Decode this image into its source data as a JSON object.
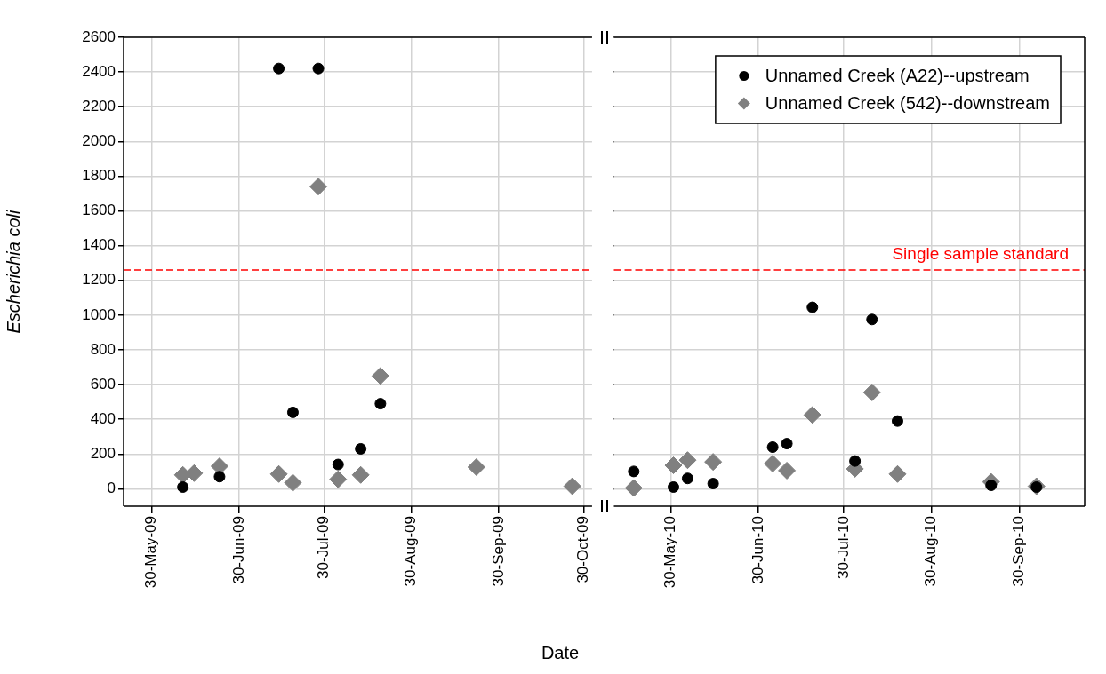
{
  "chart_data": [
    {
      "type": "scatter",
      "ylabel": "Escherichia coli",
      "xlabel": "Date",
      "xlim": [
        "2009-05-20",
        "2009-11-02"
      ],
      "xticks": [
        {
          "value": "2009-05-30",
          "label": "30-May-09"
        },
        {
          "value": "2009-06-30",
          "label": "30-Jun-09"
        },
        {
          "value": "2009-07-30",
          "label": "30-Jul-09"
        },
        {
          "value": "2009-08-30",
          "label": "30-Aug-09"
        },
        {
          "value": "2009-09-30",
          "label": "30-Sep-09"
        },
        {
          "value": "2009-10-30",
          "label": "30-Oct-09"
        }
      ],
      "ylim": [
        -100,
        2600
      ],
      "yticks": [
        0,
        200,
        400,
        600,
        800,
        1000,
        1200,
        1400,
        1600,
        1800,
        2000,
        2200,
        2400,
        2600
      ],
      "grid": true,
      "ref_lines": [
        {
          "axis": "y",
          "value": 1260,
          "color": "#ff0000",
          "line_style": "dashed"
        }
      ],
      "series": [
        {
          "color": "#000000",
          "marker": "circle",
          "x": [
            "2009-06-10",
            "2009-06-23",
            "2009-07-14",
            "2009-07-19",
            "2009-07-28",
            "2009-08-04",
            "2009-08-12",
            "2009-08-19"
          ],
          "values": [
            10,
            70,
            2420,
            440,
            2420,
            140,
            230,
            490
          ]
        },
        {
          "color": "#808080",
          "marker": "diamond",
          "x": [
            "2009-06-10",
            "2009-06-14",
            "2009-06-23",
            "2009-07-14",
            "2009-07-19",
            "2009-07-28",
            "2009-08-04",
            "2009-08-12",
            "2009-08-19",
            "2009-09-22",
            "2009-10-26"
          ],
          "values": [
            80,
            90,
            130,
            85,
            35,
            1740,
            55,
            80,
            650,
            125,
            15
          ]
        }
      ]
    },
    {
      "type": "scatter",
      "xlim": [
        "2010-05-10",
        "2010-10-23"
      ],
      "xticks": [
        {
          "value": "2010-05-30",
          "label": "30-May-10"
        },
        {
          "value": "2010-06-30",
          "label": "30-Jun-10"
        },
        {
          "value": "2010-07-30",
          "label": "30-Jul-10"
        },
        {
          "value": "2010-08-30",
          "label": "30-Aug-10"
        },
        {
          "value": "2010-09-30",
          "label": "30-Sep-10"
        }
      ],
      "ylim": [
        -100,
        2600
      ],
      "yticks": [
        0,
        200,
        400,
        600,
        800,
        1000,
        1200,
        1400,
        1600,
        1800,
        2000,
        2200,
        2400,
        2600
      ],
      "grid": true,
      "tick_labels": "x",
      "legend": "top right",
      "ref_lines": [
        {
          "axis": "y",
          "value": 1260,
          "label": "Single sample standard",
          "color": "#ff0000",
          "line_style": "dashed"
        }
      ],
      "series": [
        {
          "name": "Unnamed Creek (A22)--upstream",
          "color": "#000000",
          "marker": "circle",
          "x": [
            "2010-05-17",
            "2010-05-31",
            "2010-06-05",
            "2010-06-14",
            "2010-07-05",
            "2010-07-10",
            "2010-07-19",
            "2010-08-03",
            "2010-08-09",
            "2010-08-18",
            "2010-09-20",
            "2010-10-06"
          ],
          "values": [
            100,
            10,
            60,
            30,
            240,
            260,
            1045,
            160,
            975,
            390,
            20,
            10
          ]
        },
        {
          "name": "Unnamed Creek (542)--downstream",
          "color": "#808080",
          "marker": "diamond",
          "x": [
            "2010-05-17",
            "2010-05-31",
            "2010-06-05",
            "2010-06-14",
            "2010-07-05",
            "2010-07-10",
            "2010-07-19",
            "2010-08-03",
            "2010-08-09",
            "2010-08-18",
            "2010-09-20",
            "2010-10-06"
          ],
          "values": [
            5,
            135,
            165,
            155,
            145,
            105,
            425,
            115,
            555,
            85,
            40,
            15
          ]
        }
      ]
    }
  ]
}
